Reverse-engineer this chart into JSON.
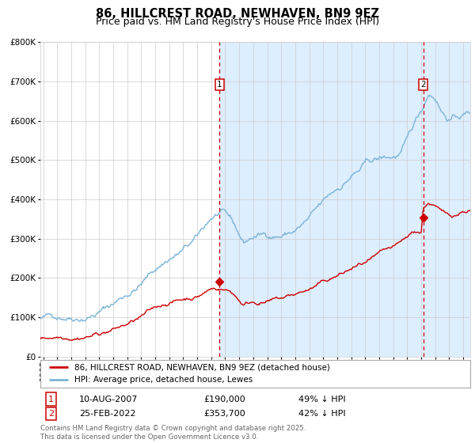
{
  "title": "86, HILLCREST ROAD, NEWHAVEN, BN9 9EZ",
  "subtitle": "Price paid vs. HM Land Registry's House Price Index (HPI)",
  "ylim": [
    0,
    800000
  ],
  "yticks": [
    0,
    100000,
    200000,
    300000,
    400000,
    500000,
    600000,
    700000,
    800000
  ],
  "hpi_color": "#7ab4d8",
  "hpi_fill_color": "#ddeeff",
  "price_color": "#cc0000",
  "grid_color": "#cccccc",
  "background_color": "#ffffff",
  "title_fontsize": 10.5,
  "subtitle_fontsize": 9,
  "tick_fontsize": 7.5,
  "legend_label_hpi": "HPI: Average price, detached house, Lewes",
  "legend_label_price": "86, HILLCREST ROAD, NEWHAVEN, BN9 9EZ (detached house)",
  "annotation1_date": "10-AUG-2007",
  "annotation1_price": "£190,000",
  "annotation1_hpi": "49% ↓ HPI",
  "annotation2_date": "25-FEB-2022",
  "annotation2_price": "£353,700",
  "annotation2_hpi": "42% ↓ HPI",
  "vline1_x": 2007.6,
  "vline2_x": 2022.15,
  "marker1_y": 190000,
  "marker2_y": 353700,
  "footer": "Contains HM Land Registry data © Crown copyright and database right 2025.\nThis data is licensed under the Open Government Licence v3.0.",
  "shade_start": 2007.6,
  "shade_end": 2025.5,
  "xlim_start": 1994.8,
  "xlim_end": 2025.5
}
